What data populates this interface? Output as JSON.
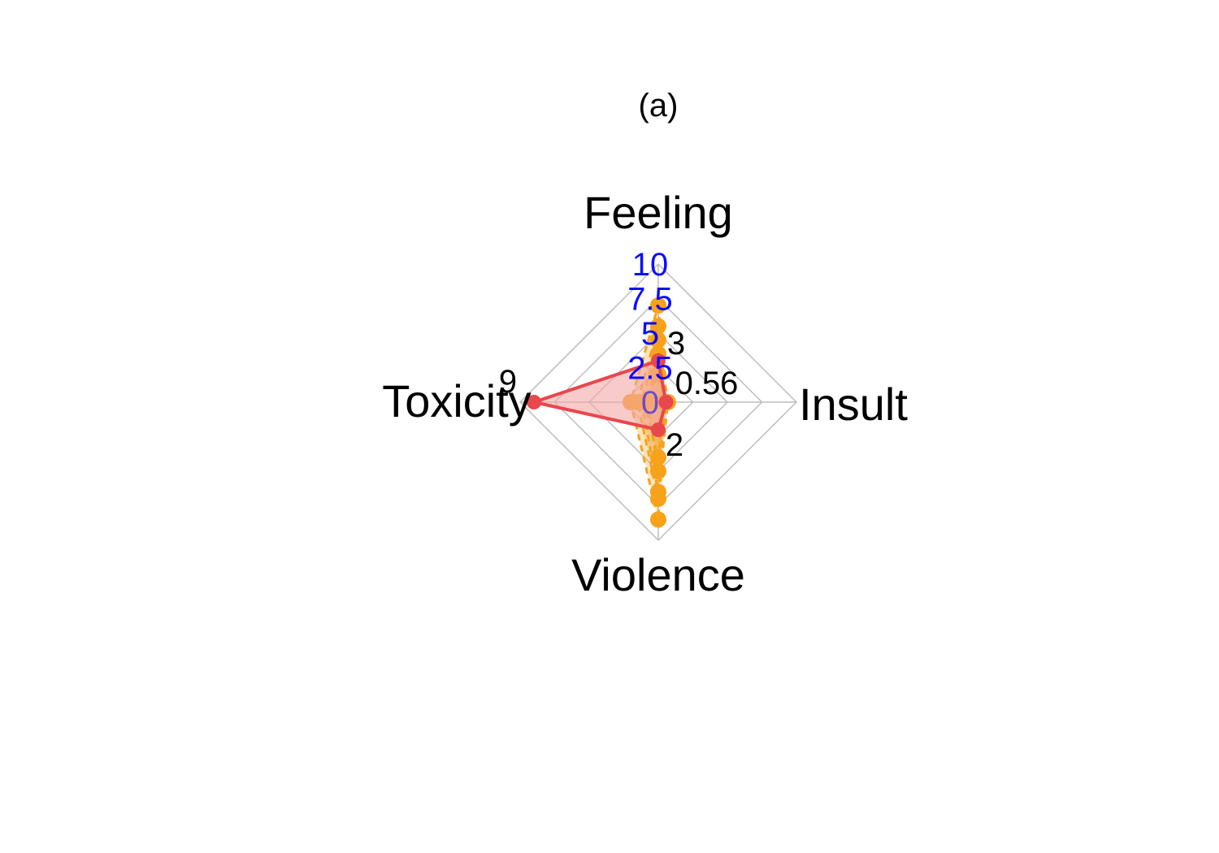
{
  "chart_data": {
    "type": "radar",
    "title": "(a)",
    "axes": [
      "Feeling",
      "Insult",
      "Violence",
      "Toxicity"
    ],
    "rlim": [
      0,
      10
    ],
    "ring_labels": [
      "0",
      "2.5",
      "5",
      "7.5",
      "10"
    ],
    "ring_label_color": "#0000ff",
    "grid": true,
    "series": [
      {
        "values": [
          3,
          0.56,
          2,
          9
        ],
        "color": "#e8474c",
        "fill": "#f4a6a6",
        "style": "solid",
        "point_labels": [
          "3",
          "0.56",
          "2",
          "9"
        ]
      },
      {
        "values": [
          7,
          0.5,
          8.5,
          2
        ],
        "color": "#f7a21b",
        "fill": "#f7b34d",
        "style": "dashed"
      },
      {
        "values": [
          5.5,
          0.4,
          7,
          1.5
        ],
        "color": "#f7a21b",
        "fill": "#f7b34d",
        "style": "dashed"
      },
      {
        "values": [
          4.5,
          0.7,
          6.5,
          1.2
        ],
        "color": "#f7a21b",
        "fill": "#f7b34d",
        "style": "dashed"
      },
      {
        "values": [
          3.5,
          0.3,
          5,
          0.8
        ],
        "color": "#f7a21b",
        "fill": "#f7b34d",
        "style": "dashed"
      },
      {
        "values": [
          2,
          0.6,
          4,
          1
        ],
        "color": "#f7a21b",
        "fill": "#f7b34d",
        "style": "dashed"
      }
    ]
  }
}
